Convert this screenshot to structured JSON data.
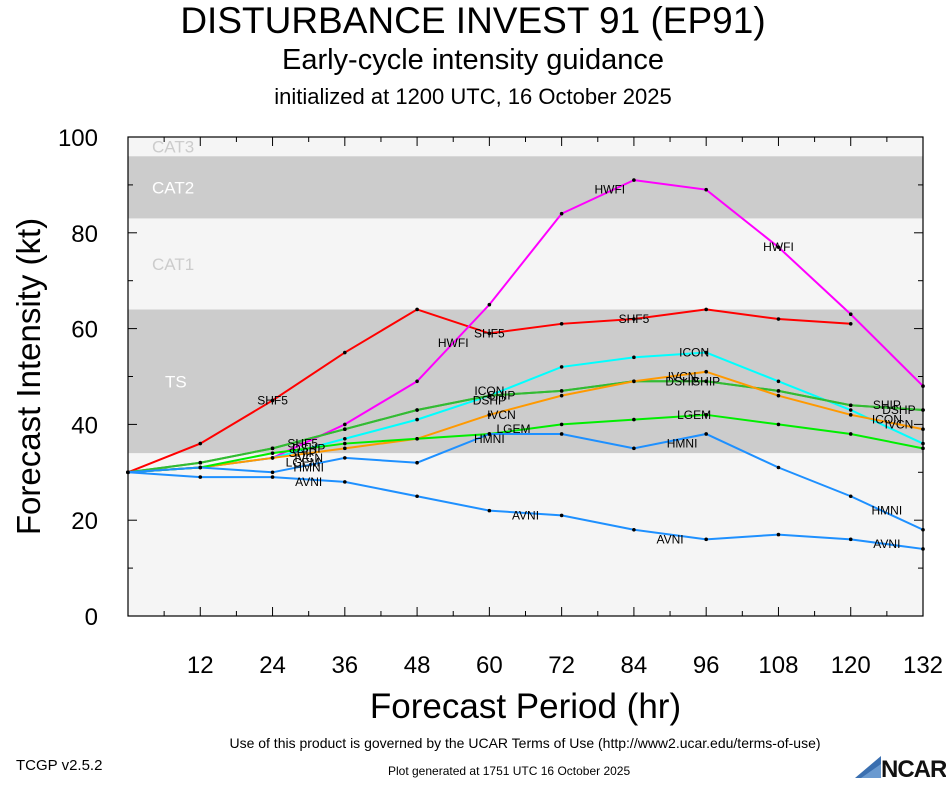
{
  "header": {
    "title": "DISTURBANCE INVEST 91 (EP91)",
    "subtitle": "Early-cycle intensity guidance",
    "init": "initialized at 1200 UTC, 16 October 2025"
  },
  "footer": {
    "terms": "Use of this product is governed by the UCAR Terms of Use (http://www2.ucar.edu/terms-of-use)",
    "version": "TCGP v2.5.2",
    "generated": "Plot generated at 1751 UTC   16 October 2025",
    "logo_text": "NCAR"
  },
  "chart_data": {
    "type": "line",
    "title": "DISTURBANCE INVEST 91 (EP91)",
    "xlabel": "Forecast Period (hr)",
    "ylabel": "Forecast Intensity (kt)",
    "xlim": [
      0,
      132
    ],
    "ylim": [
      0,
      100
    ],
    "xticks": [
      12,
      24,
      36,
      48,
      60,
      72,
      84,
      96,
      108,
      120,
      132
    ],
    "yticks": [
      0,
      20,
      40,
      60,
      80,
      100
    ],
    "grid": false,
    "bands": [
      {
        "label": "TS",
        "from": 34,
        "to": 64,
        "color": "#cccccc"
      },
      {
        "label": "CAT1",
        "from": 64,
        "to": 83,
        "color": "#f5f5f5"
      },
      {
        "label": "CAT2",
        "from": 83,
        "to": 96,
        "color": "#cccccc"
      },
      {
        "label": "CAT3",
        "from": 96,
        "to": 100,
        "color": "#f5f5f5"
      }
    ],
    "below_band_color": "#f5f5f5",
    "series": [
      {
        "name": "SHF5",
        "color": "#ff0000",
        "x": [
          0,
          12,
          24,
          36,
          48,
          60,
          72,
          84,
          96,
          108,
          120
        ],
        "y": [
          30,
          36,
          45,
          55,
          64,
          59,
          61,
          62,
          64,
          62,
          61
        ],
        "labels": [
          [
            24,
            45
          ],
          [
            60,
            59
          ],
          [
            84,
            62
          ]
        ]
      },
      {
        "name": "HWFI",
        "color": "#ff00ff",
        "x": [
          0,
          12,
          24,
          36,
          48,
          60,
          72,
          84,
          96,
          108,
          120,
          132
        ],
        "y": [
          30,
          31,
          33,
          40,
          49,
          65,
          84,
          91,
          89,
          77,
          63,
          48
        ],
        "labels": [
          [
            54,
            57
          ],
          [
            80,
            89
          ],
          [
            108,
            77
          ]
        ]
      },
      {
        "name": "ICON",
        "color": "#00ffff",
        "x": [
          0,
          12,
          24,
          36,
          48,
          60,
          72,
          84,
          96,
          108,
          120,
          132
        ],
        "y": [
          30,
          31,
          33,
          37,
          41,
          46,
          52,
          54,
          55,
          49,
          43,
          36
        ],
        "labels": [
          [
            60,
            47
          ],
          [
            94,
            55
          ],
          [
            126,
            41
          ]
        ]
      },
      {
        "name": "SHIP",
        "color": "#33bb33",
        "x": [
          0,
          12,
          24,
          36,
          48,
          60,
          72,
          84,
          96,
          108,
          120,
          132
        ],
        "y": [
          30,
          32,
          35,
          39,
          43,
          46,
          47,
          49,
          49,
          47,
          44,
          43
        ],
        "labels": [
          [
            62,
            46
          ],
          [
            96,
            49
          ],
          [
            126,
            44
          ]
        ]
      },
      {
        "name": "DSHP",
        "color": "#33bb33",
        "x": [
          0,
          12,
          24,
          36,
          48,
          60,
          72,
          84,
          96,
          108,
          120,
          132
        ],
        "y": [
          30,
          32,
          35,
          39,
          43,
          46,
          47,
          49,
          49,
          47,
          44,
          43
        ],
        "labels": [
          [
            60,
            45
          ],
          [
            92,
            49
          ],
          [
            128,
            43
          ]
        ]
      },
      {
        "name": "IVCN",
        "color": "#ff9900",
        "x": [
          0,
          12,
          24,
          36,
          48,
          60,
          72,
          84,
          96,
          108,
          120,
          132
        ],
        "y": [
          30,
          31,
          33,
          35,
          37,
          42,
          46,
          49,
          51,
          46,
          42,
          39
        ],
        "labels": [
          [
            62,
            42
          ],
          [
            92,
            50
          ],
          [
            128,
            40
          ]
        ]
      },
      {
        "name": "LGEM",
        "color": "#00ee00",
        "x": [
          0,
          12,
          24,
          36,
          48,
          60,
          72,
          84,
          96,
          108,
          120,
          132
        ],
        "y": [
          30,
          31,
          34,
          36,
          37,
          38,
          40,
          41,
          42,
          40,
          38,
          35
        ],
        "labels": [
          [
            64,
            39
          ],
          [
            94,
            42
          ]
        ]
      },
      {
        "name": "HMNI",
        "color": "#1e90ff",
        "x": [
          0,
          12,
          24,
          36,
          48,
          60,
          72,
          84,
          96,
          108,
          120,
          132
        ],
        "y": [
          30,
          31,
          30,
          33,
          32,
          38,
          38,
          35,
          38,
          31,
          25,
          18
        ],
        "labels": [
          [
            30,
            31
          ],
          [
            60,
            37
          ],
          [
            92,
            36
          ],
          [
            126,
            22
          ]
        ]
      },
      {
        "name": "AVNI",
        "color": "#1e90ff",
        "x": [
          0,
          12,
          24,
          36,
          48,
          60,
          72,
          84,
          96,
          108,
          120,
          132
        ],
        "y": [
          30,
          29,
          29,
          28,
          25,
          22,
          21,
          18,
          16,
          17,
          16,
          14
        ],
        "labels": [
          [
            30,
            28
          ],
          [
            66,
            21
          ],
          [
            90,
            16
          ],
          [
            126,
            15
          ]
        ]
      }
    ],
    "cluster_labels": [
      {
        "text": "SHF5",
        "x": 29,
        "y": 36
      },
      {
        "text": "DSHP",
        "x": 30,
        "y": 35
      },
      {
        "text": "SHIP",
        "x": 29,
        "y": 34
      },
      {
        "text": "IVCN",
        "x": 30,
        "y": 33
      },
      {
        "text": "LGEM",
        "x": 29,
        "y": 32
      }
    ]
  }
}
